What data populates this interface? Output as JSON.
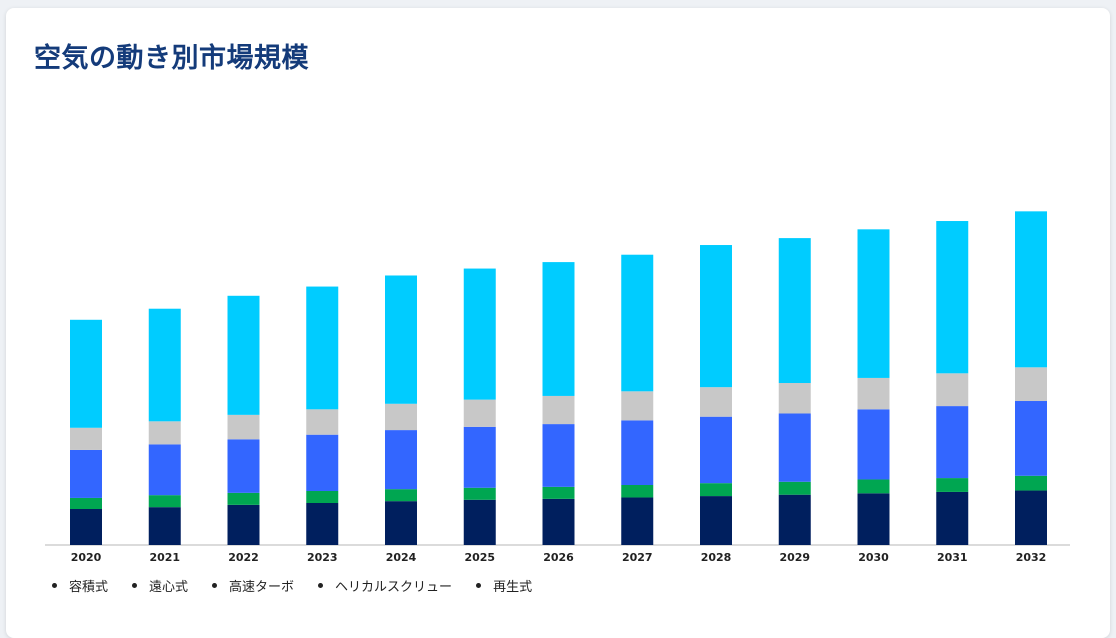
{
  "title": "空気の動き別市場規模",
  "chart_data": {
    "type": "bar",
    "stacked": true,
    "categories": [
      "2020",
      "2021",
      "2022",
      "2023",
      "2024",
      "2025",
      "2026",
      "2027",
      "2028",
      "2029",
      "2030",
      "2031",
      "2032"
    ],
    "series": [
      {
        "name": "容積式",
        "color": "#001f5e",
        "values": [
          39,
          41,
          43.5,
          45.5,
          47.5,
          49,
          50,
          51.5,
          53,
          54.5,
          56,
          57.5,
          59
        ]
      },
      {
        "name": "遠心式",
        "color": "#00a651",
        "values": [
          12,
          13,
          13,
          13,
          13,
          13,
          13,
          13.5,
          14,
          14,
          15,
          15,
          16
        ]
      },
      {
        "name": "高速ターボ",
        "color": "#3366ff",
        "values": [
          52,
          55,
          58,
          61,
          64,
          66,
          68,
          70,
          72,
          74,
          76,
          78,
          81
        ]
      },
      {
        "name": "ヘリカルスクリュー",
        "color": "#c8c8c8",
        "values": [
          24,
          25,
          26.5,
          27.5,
          28.5,
          29.5,
          30.5,
          31.5,
          32,
          33,
          34,
          35.5,
          36.5
        ]
      },
      {
        "name": "再生式",
        "color": "#00ccff",
        "values": [
          117,
          122,
          129,
          133,
          139,
          142,
          145,
          148,
          154,
          157,
          161,
          165,
          169
        ]
      }
    ],
    "ylim": [
      0,
      400
    ],
    "grid": false,
    "legend": "bottom-left"
  }
}
